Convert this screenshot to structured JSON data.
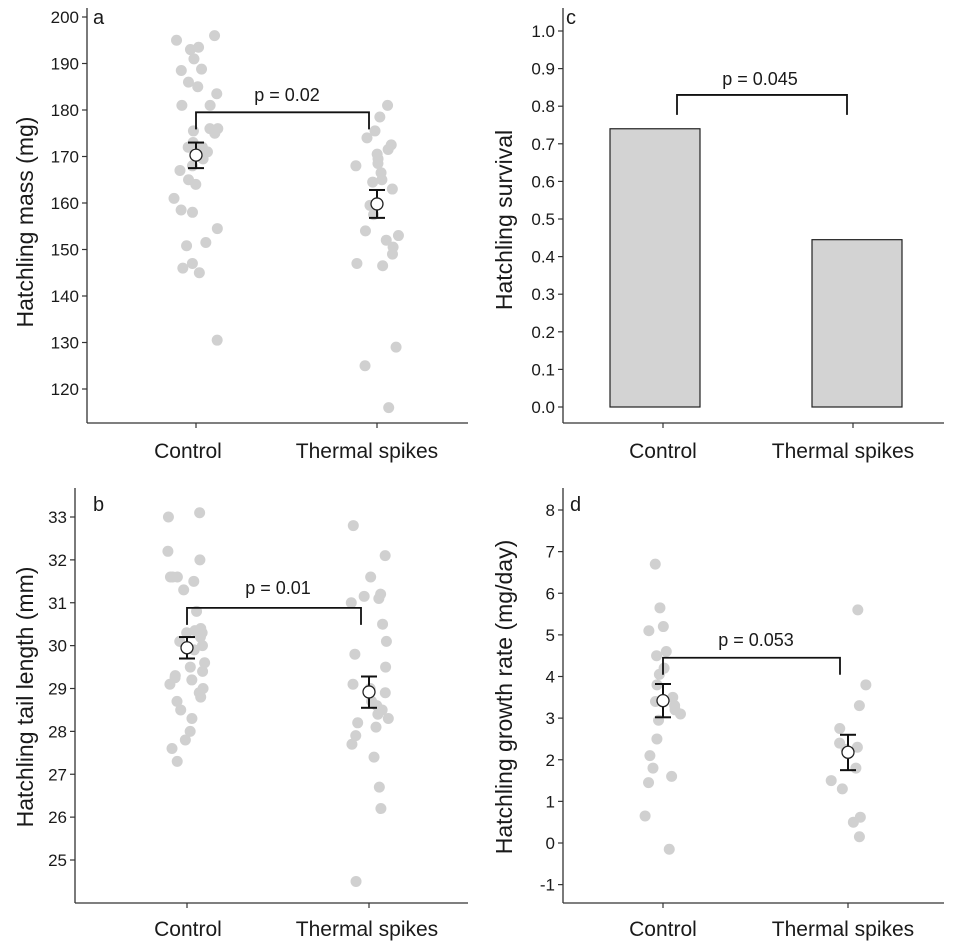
{
  "chart_data": [
    {
      "panel": "a",
      "type": "scatter",
      "ylabel": "Hatchling mass (mg)",
      "categories": [
        "Control",
        "Thermal spikes"
      ],
      "ylim": [
        112,
        200
      ],
      "yticks": [
        120,
        130,
        140,
        150,
        160,
        170,
        180,
        190,
        200
      ],
      "points": [
        {
          "category": "Control",
          "values": [
            196,
            195,
            193.5,
            193,
            191,
            188.8,
            188.5,
            186,
            185,
            183.5,
            181,
            181,
            176,
            176,
            175.5,
            175,
            173,
            172,
            172,
            171,
            170,
            169.5,
            168,
            167,
            165,
            164,
            161,
            158.5,
            158,
            154.5,
            151.5,
            150.8,
            147,
            146,
            145,
            130.5
          ]
        },
        {
          "category": "Thermal spikes",
          "values": [
            181,
            178.5,
            175.5,
            174,
            172.5,
            171.5,
            170.5,
            169.5,
            168.5,
            168,
            166.5,
            165,
            164.5,
            163,
            159.5,
            157.5,
            154,
            153,
            152,
            150.5,
            149,
            147,
            146.5,
            129,
            125,
            116
          ]
        }
      ],
      "means": [
        {
          "category": "Control",
          "mean": 170.3,
          "se_low": 167.5,
          "se_high": 173
        },
        {
          "category": "Thermal spikes",
          "mean": 159.8,
          "se_low": 156.8,
          "se_high": 162.8
        }
      ],
      "annotation": {
        "text": "p = 0.02",
        "bracket_y": 179.5
      }
    },
    {
      "panel": "c",
      "type": "bar",
      "ylabel": "Hatchling survival",
      "categories": [
        "Control",
        "Thermal spikes"
      ],
      "values": [
        0.74,
        0.445
      ],
      "ylim": [
        -0.03,
        1.04
      ],
      "yticks": [
        0.0,
        0.1,
        0.2,
        0.3,
        0.4,
        0.5,
        0.6,
        0.7,
        0.8,
        0.9,
        1.0
      ],
      "ytick_labels": [
        "0.0",
        "0.1",
        "0.2",
        "0.3",
        "0.4",
        "0.5",
        "0.6",
        "0.7",
        "0.8",
        "0.9",
        "1.0"
      ],
      "bar_color": "#d3d3d3",
      "annotation": {
        "text": "p = 0.045",
        "bracket_y": 0.83
      }
    },
    {
      "panel": "b",
      "type": "scatter",
      "ylabel": "Hatchling tail length (mm)",
      "categories": [
        "Control",
        "Thermal spikes"
      ],
      "ylim": [
        24.2,
        33.5
      ],
      "yticks": [
        25,
        26,
        27,
        28,
        29,
        30,
        31,
        32,
        33
      ],
      "points": [
        {
          "category": "Control",
          "values": [
            33.1,
            33,
            32.2,
            32,
            31.6,
            31.6,
            31.6,
            31.5,
            31.3,
            30.8,
            30.4,
            30.35,
            30.3,
            30.3,
            30.2,
            30.1,
            30,
            29.9,
            29.6,
            29.5,
            29.4,
            29.3,
            29.25,
            29.2,
            29.1,
            29,
            28.9,
            28.8,
            28.7,
            28.5,
            28.3,
            28,
            27.8,
            27.6,
            27.3
          ]
        },
        {
          "category": "Thermal spikes",
          "values": [
            32.8,
            32.1,
            31.6,
            31.2,
            31.15,
            31.1,
            31,
            30.5,
            30.1,
            29.8,
            29.5,
            29.1,
            29,
            28.9,
            28.7,
            28.6,
            28.5,
            28.4,
            28.3,
            28.2,
            28.1,
            27.9,
            27.7,
            27.4,
            26.7,
            26.2,
            24.5
          ]
        }
      ],
      "means": [
        {
          "category": "Control",
          "mean": 29.95,
          "se_low": 29.7,
          "se_high": 30.2
        },
        {
          "category": "Thermal spikes",
          "mean": 28.92,
          "se_low": 28.55,
          "se_high": 29.28
        }
      ],
      "annotation": {
        "text": "p = 0.01",
        "bracket_y": 30.88
      }
    },
    {
      "panel": "d",
      "type": "scatter",
      "ylabel": "Hatchling growth rate (mg/day)",
      "categories": [
        "Control",
        "Thermal spikes"
      ],
      "ylim": [
        -1.45,
        8.35
      ],
      "yticks": [
        -1,
        0,
        1,
        2,
        3,
        4,
        5,
        6,
        7,
        8
      ],
      "points": [
        {
          "category": "Control",
          "values": [
            6.7,
            5.65,
            5.2,
            5.1,
            4.6,
            4.5,
            4.2,
            4.05,
            3.8,
            3.5,
            3.4,
            3.3,
            3.2,
            3.1,
            2.95,
            2.5,
            2.1,
            1.8,
            1.6,
            1.45,
            0.65,
            -0.15
          ]
        },
        {
          "category": "Thermal spikes",
          "values": [
            5.6,
            3.8,
            3.3,
            2.75,
            2.4,
            2.3,
            2.25,
            1.8,
            1.5,
            1.3,
            0.62,
            0.5,
            0.15
          ]
        }
      ],
      "means": [
        {
          "category": "Control",
          "mean": 3.42,
          "se_low": 3.02,
          "se_high": 3.82
        },
        {
          "category": "Thermal spikes",
          "mean": 2.18,
          "se_low": 1.75,
          "se_high": 2.6
        }
      ],
      "annotation": {
        "text": "p = 0.053",
        "bracket_y": 4.45
      }
    }
  ]
}
